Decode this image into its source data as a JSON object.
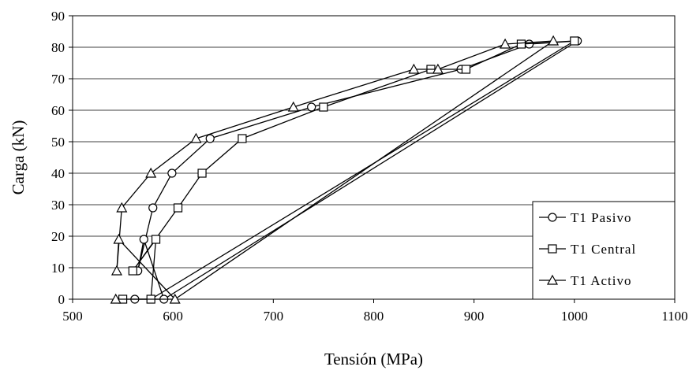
{
  "chart_data": {
    "type": "line",
    "xlabel": "Tensión (MPa)",
    "ylabel": "Carga (kN)",
    "xlim": [
      500,
      1100
    ],
    "ylim": [
      0,
      90
    ],
    "x_ticks": [
      "500",
      "600",
      "700",
      "800",
      "900",
      "1000",
      "1100"
    ],
    "y_ticks": [
      "0",
      "10",
      "20",
      "30",
      "40",
      "50",
      "60",
      "70",
      "80",
      "90"
    ],
    "grid": "horizontal",
    "legend_position": "bottom-right",
    "series": [
      {
        "name": "T1 Pasivo",
        "marker": "circle",
        "x": [
          562,
          591,
          571,
          565,
          580,
          599,
          637,
          738,
          887,
          955,
          1003,
          591
        ],
        "y": [
          0,
          0,
          19,
          9,
          29,
          40,
          51,
          61,
          73,
          81,
          82,
          0
        ]
      },
      {
        "name": "T1 Central",
        "marker": "square",
        "x": [
          550,
          578,
          583,
          560,
          605,
          629,
          669,
          750,
          857,
          892,
          947,
          1000,
          578
        ],
        "y": [
          0,
          0,
          19,
          9,
          29,
          40,
          51,
          61,
          73,
          73,
          81,
          82,
          0
        ]
      },
      {
        "name": "T1 Activo",
        "marker": "triangle",
        "x": [
          543,
          602,
          546,
          544,
          549,
          578,
          623,
          720,
          840,
          864,
          931,
          979,
          602
        ],
        "y": [
          0,
          0,
          19,
          9,
          29,
          40,
          51,
          61,
          73,
          73,
          81,
          82,
          0
        ]
      }
    ]
  }
}
